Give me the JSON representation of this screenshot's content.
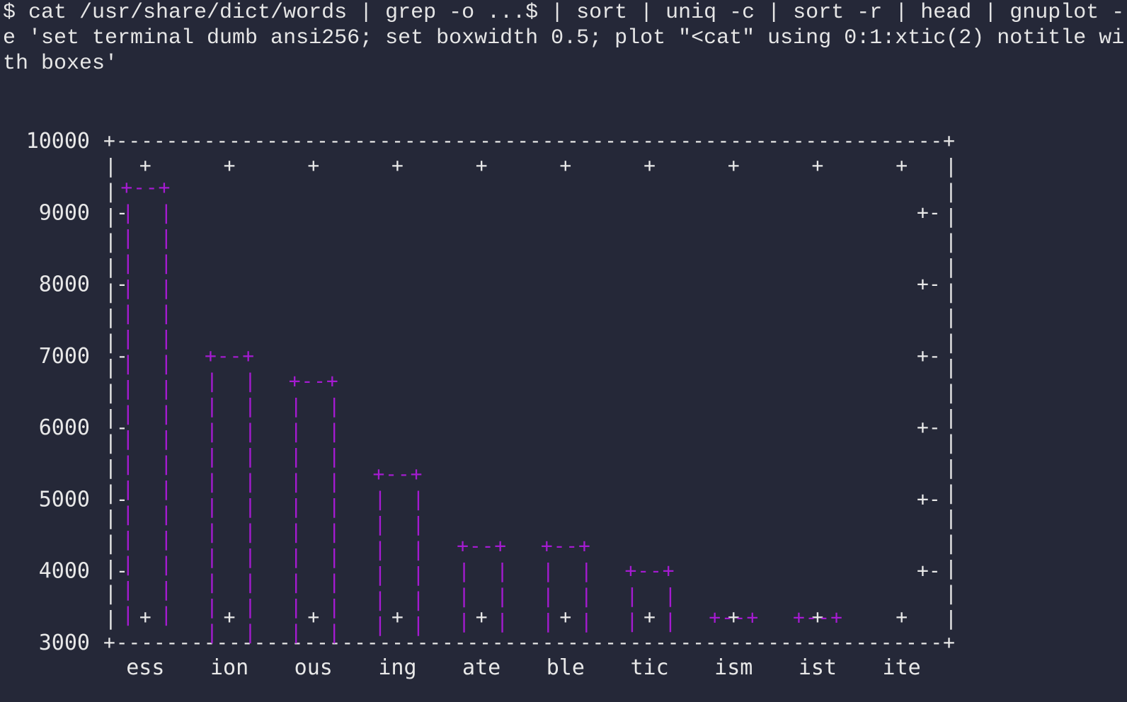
{
  "command": {
    "lines": [
      "$ cat /usr/share/dict/words | grep -o ...$ | sort | uniq -c | sort -r | head | gnuplot -",
      "e 'set terminal dumb ansi256; set boxwidth 0.5; plot \"<cat\" using 0:1:xtic(2) notitle wi",
      "th boxes'"
    ]
  },
  "colors": {
    "background": "#252838",
    "text": "#e8e8e8",
    "bars": "#a51bd1"
  },
  "chart_data": {
    "type": "bar",
    "title": "",
    "xlabel": "",
    "ylabel": "",
    "categories": [
      "ess",
      "ion",
      "ous",
      "ing",
      "ate",
      "ble",
      "tic",
      "ism",
      "ist",
      "ite"
    ],
    "values": [
      9350,
      7000,
      6650,
      5350,
      4350,
      4350,
      4000,
      3350,
      3350,
      3000
    ],
    "ylim": [
      3000,
      10000
    ],
    "yticks": [
      3000,
      4000,
      5000,
      6000,
      7000,
      8000,
      9000,
      10000
    ],
    "boxwidth": 0.5,
    "style": "ascii dumb terminal",
    "grid": false,
    "legend": "none"
  }
}
